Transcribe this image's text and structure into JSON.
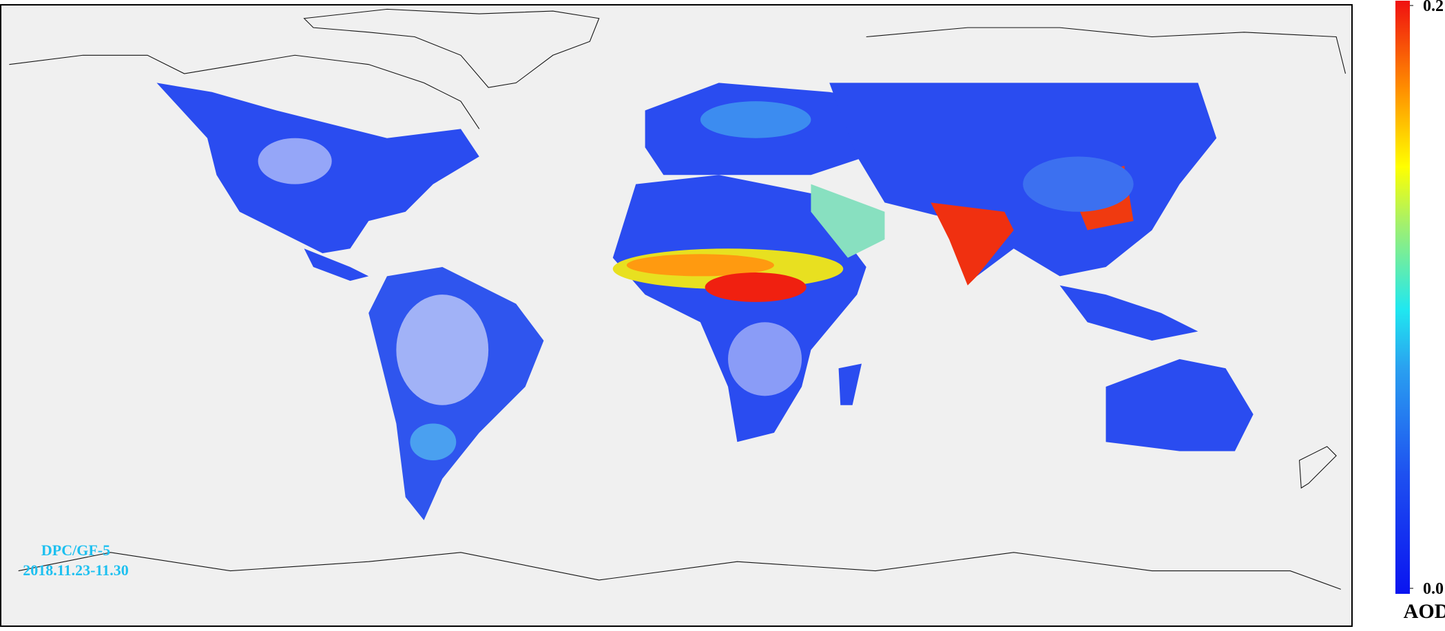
{
  "map": {
    "source": "DPC/GF-5",
    "date": "2018.11.23-11.30",
    "colorbar": {
      "label": "AODf",
      "clim": [
        0,
        0.2
      ],
      "ticks": [
        {
          "value": 0,
          "label": "0.0"
        },
        0.2
      ]
    }
  }
}
